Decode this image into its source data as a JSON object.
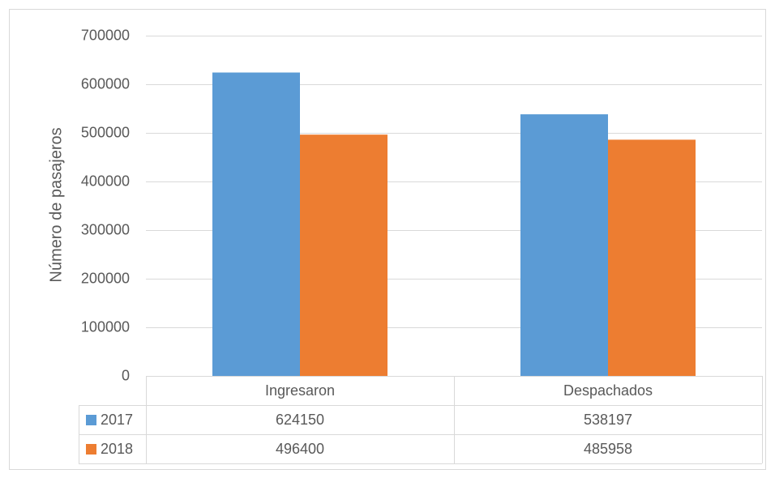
{
  "chart_data": {
    "type": "bar",
    "categories": [
      "Ingresaron",
      "Despachados"
    ],
    "series": [
      {
        "name": "2017",
        "values": [
          624150,
          538197
        ],
        "color": "#5B9BD5"
      },
      {
        "name": "2018",
        "values": [
          496400,
          485958
        ],
        "color": "#ED7D31"
      }
    ],
    "ylabel": "Número de pasajeros",
    "ylim": [
      0,
      700000
    ],
    "yticks": [
      0,
      100000,
      200000,
      300000,
      400000,
      500000,
      600000,
      700000
    ],
    "grid": true,
    "legend": "data-table",
    "data_table": true,
    "colors": {
      "grid": "#D9D9D9",
      "text": "#595959",
      "border": "#D9D9D9"
    }
  }
}
